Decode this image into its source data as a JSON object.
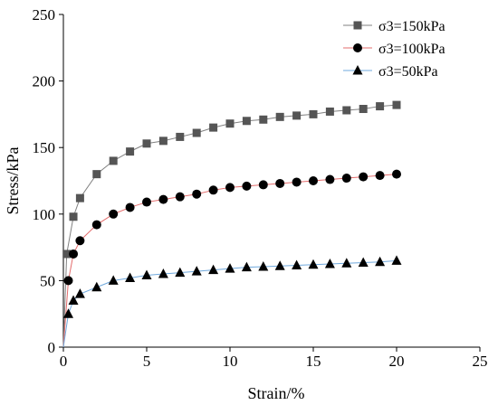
{
  "chart_data": {
    "type": "line",
    "title": "",
    "xlabel": "Strain/%",
    "ylabel": "Stress/kPa",
    "xlim": [
      0,
      25
    ],
    "ylim": [
      0,
      250
    ],
    "xticks": [
      0,
      5,
      10,
      15,
      20,
      25
    ],
    "yticks": [
      0,
      50,
      100,
      150,
      200,
      250
    ],
    "grid": false,
    "legend_position": "top-right",
    "series": [
      {
        "name": "σ3=150kPa",
        "marker": "square",
        "line_color": "#808080",
        "marker_color": "#555555",
        "x": [
          0,
          0.2,
          0.6,
          1,
          2,
          3,
          4,
          5,
          6,
          7,
          8,
          9,
          10,
          11,
          12,
          13,
          14,
          15,
          16,
          17,
          18,
          19,
          20
        ],
        "y": [
          0,
          70,
          98,
          112,
          130,
          140,
          147,
          153,
          155,
          158,
          161,
          165,
          168,
          170,
          171,
          173,
          174,
          175,
          177,
          178,
          179,
          181,
          182
        ]
      },
      {
        "name": "σ3=100kPa",
        "marker": "circle",
        "line_color": "#e36c6c",
        "marker_color": "#000000",
        "x": [
          0,
          0.3,
          0.6,
          1,
          2,
          3,
          4,
          5,
          6,
          7,
          8,
          9,
          10,
          11,
          12,
          13,
          14,
          15,
          16,
          17,
          18,
          19,
          20
        ],
        "y": [
          0,
          50,
          70,
          80,
          92,
          100,
          105,
          109,
          111,
          113,
          115,
          118,
          120,
          121,
          122,
          123,
          124,
          125,
          126,
          127,
          128,
          129,
          130
        ]
      },
      {
        "name": "σ3=50kPa",
        "marker": "triangle",
        "line_color": "#6fa8dc",
        "marker_color": "#000000",
        "x": [
          0,
          0.3,
          0.6,
          1,
          2,
          3,
          4,
          5,
          6,
          7,
          8,
          9,
          10,
          11,
          12,
          13,
          14,
          15,
          16,
          17,
          18,
          19,
          20
        ],
        "y": [
          0,
          25,
          35,
          40,
          45,
          50,
          52,
          54,
          55,
          56,
          57,
          58,
          59,
          60,
          60.5,
          61,
          61.5,
          62,
          62.5,
          63,
          63.5,
          64,
          65
        ]
      }
    ]
  }
}
